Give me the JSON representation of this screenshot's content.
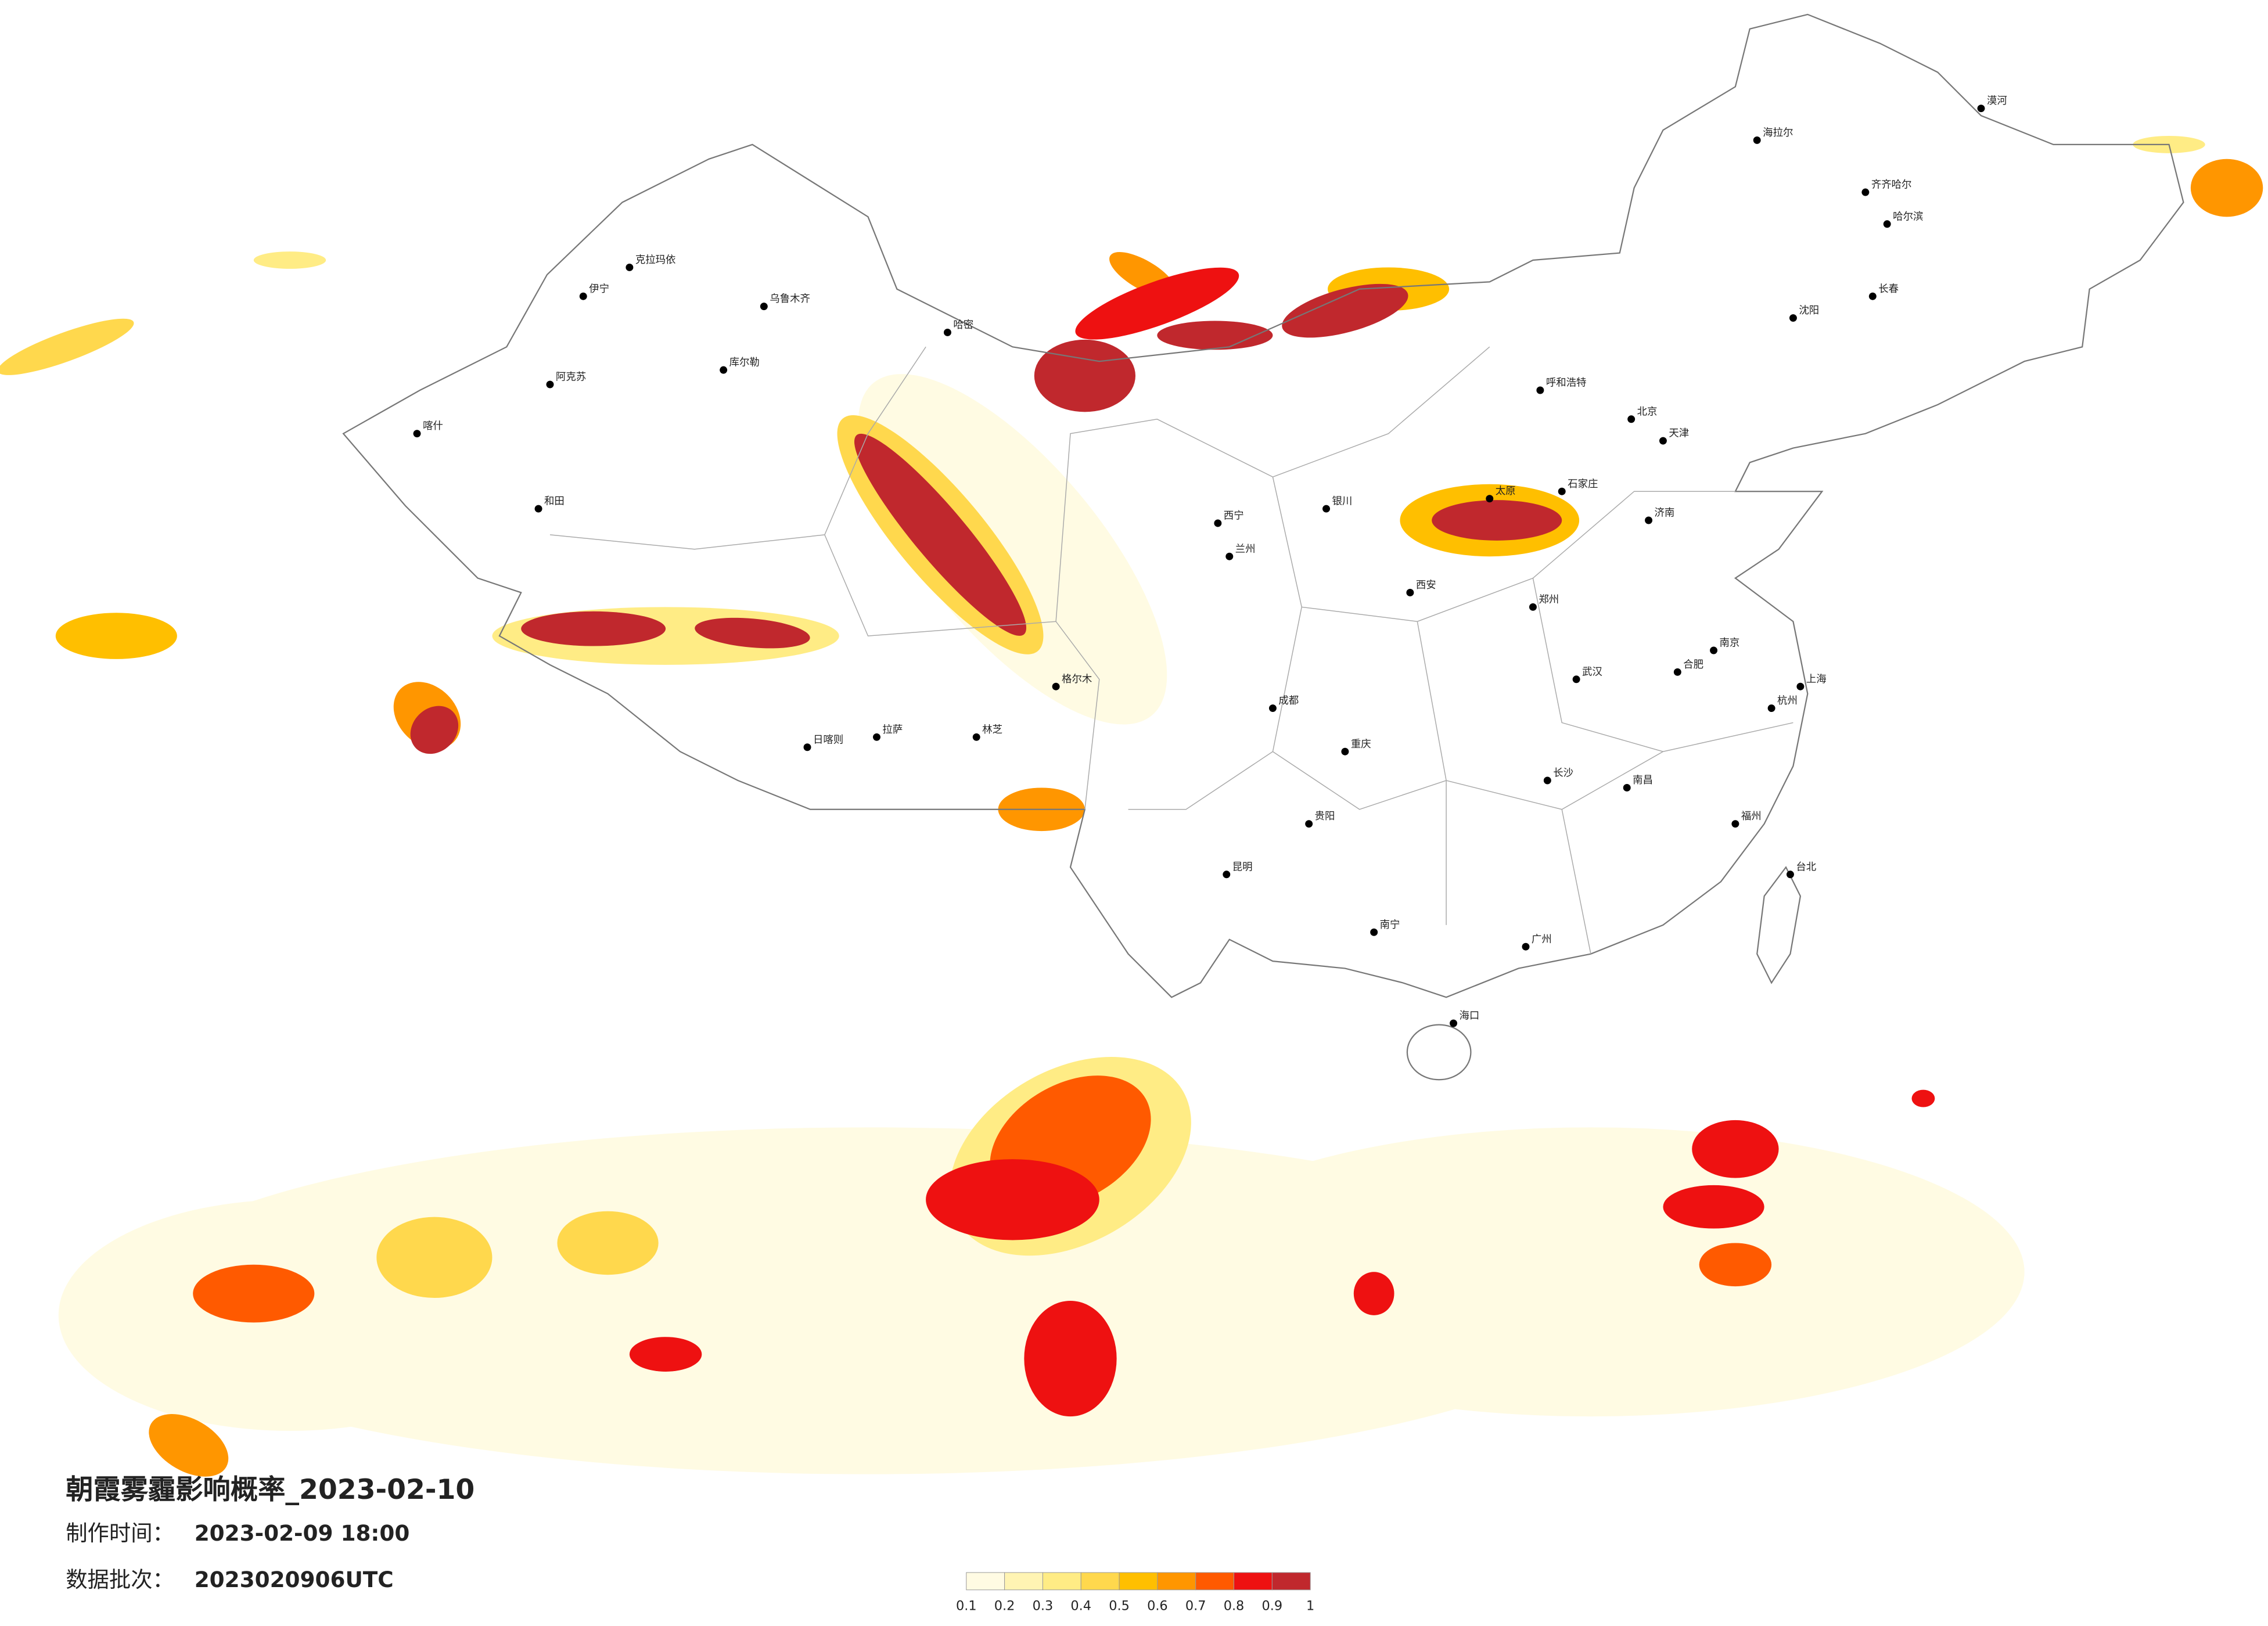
{
  "title": "朝霞雾霾影响概率_2023-02-10",
  "made_label": "制作时间：",
  "made_time": "2023-02-09 18:00",
  "batch_label": "数据批次：",
  "batch": "2023020906UTC",
  "legend": {
    "ticks": [
      0.1,
      0.2,
      0.3,
      0.4,
      0.5,
      0.6,
      0.7,
      0.8,
      0.9,
      1
    ],
    "colors": [
      "#fffbe3",
      "#fff4b3",
      "#ffec85",
      "#ffd84d",
      "#ffbf00",
      "#ff9600",
      "#ff5a00",
      "#ee1111",
      "#c0282d"
    ]
  },
  "cities": [
    "喀什",
    "和田",
    "阿克苏",
    "克拉玛依",
    "伊宁",
    "乌鲁木齐",
    "库尔勒",
    "哈密",
    "日喀则",
    "拉萨",
    "林芝",
    "格尔木",
    "西宁",
    "兰州",
    "银川",
    "呼和浩特",
    "北京",
    "天津",
    "石家庄",
    "太原",
    "济南",
    "郑州",
    "西安",
    "成都",
    "重庆",
    "贵阳",
    "昆明",
    "南宁",
    "广州",
    "海口",
    "长沙",
    "武汉",
    "南昌",
    "福州",
    "杭州",
    "南京",
    "合肥",
    "上海",
    "沈阳",
    "长春",
    "哈尔滨",
    "海拉尔",
    "齐齐哈尔",
    "漠河",
    "台北"
  ]
}
